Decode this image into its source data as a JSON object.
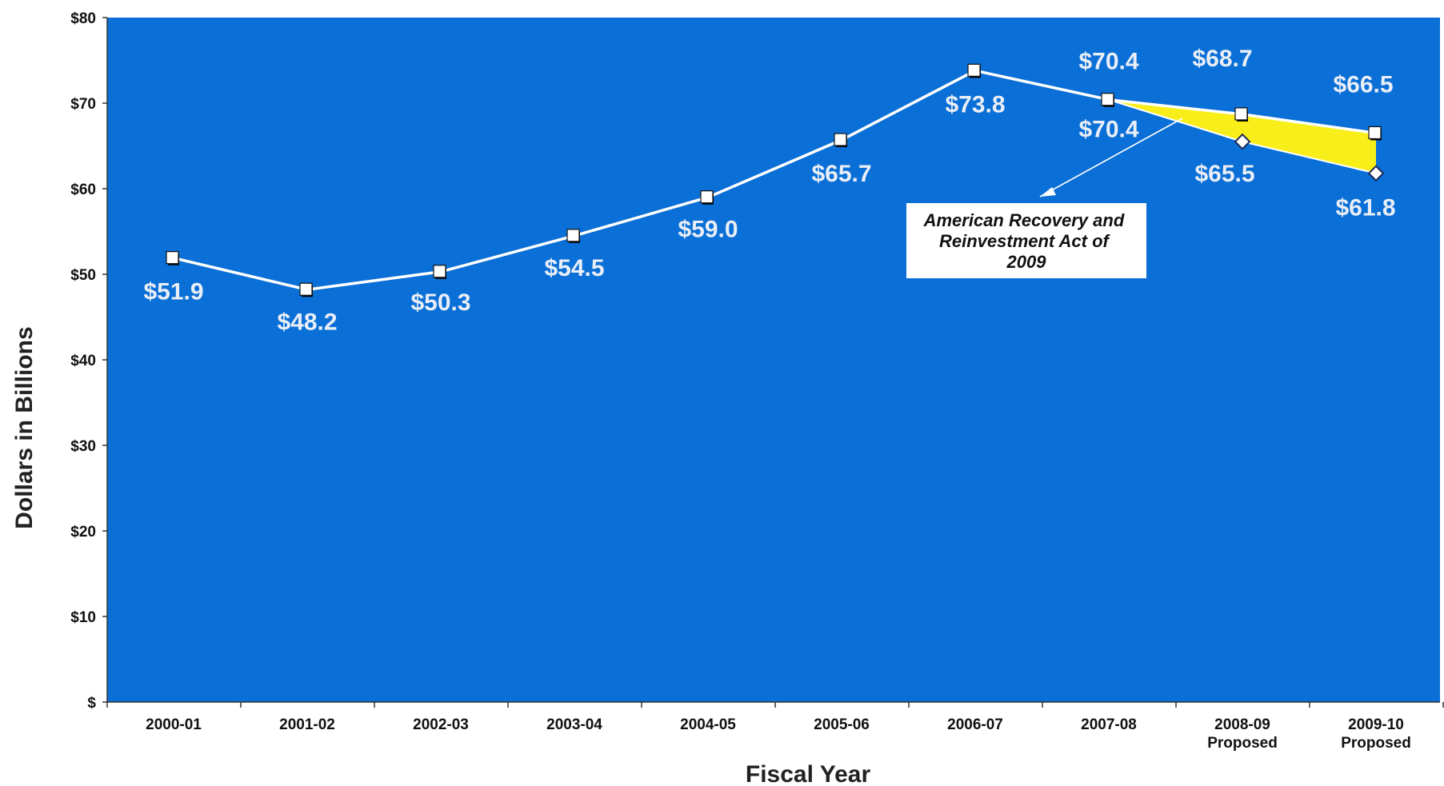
{
  "chart_data": {
    "type": "line",
    "ylabel": "Dollars in Billions",
    "xlabel": "Fiscal Year",
    "ylim": [
      0,
      80
    ],
    "yticks": [
      {
        "value": 0,
        "label": "$"
      },
      {
        "value": 10,
        "label": "$10"
      },
      {
        "value": 20,
        "label": "$20"
      },
      {
        "value": 30,
        "label": "$30"
      },
      {
        "value": 40,
        "label": "$40"
      },
      {
        "value": 50,
        "label": "$50"
      },
      {
        "value": 60,
        "label": "$60"
      },
      {
        "value": 70,
        "label": "$70"
      },
      {
        "value": 80,
        "label": "$80"
      }
    ],
    "categories": [
      [
        "2000-01"
      ],
      [
        "2001-02"
      ],
      [
        "2002-03"
      ],
      [
        "2003-04"
      ],
      [
        "2004-05"
      ],
      [
        "2005-06"
      ],
      [
        "2006-07"
      ],
      [
        "2007-08"
      ],
      [
        "2008-09",
        "Proposed"
      ],
      [
        "2009-10",
        "Proposed"
      ]
    ],
    "series": [
      {
        "values": [
          51.9,
          48.2,
          50.3,
          54.5,
          59.0,
          65.7,
          73.8,
          70.4,
          68.7,
          66.5
        ],
        "labels": [
          "$51.9",
          "$48.2",
          "$50.3",
          "$54.5",
          "$59.0",
          "$65.7",
          "$73.8",
          "$70.4",
          "$68.7",
          "$66.5"
        ]
      },
      {
        "values": [
          null,
          null,
          null,
          null,
          null,
          null,
          null,
          70.4,
          65.5,
          61.8
        ],
        "labels": [
          "",
          "",
          "",
          "",
          "",
          "",
          "",
          "$70.4",
          "$65.5",
          "$61.8"
        ]
      }
    ],
    "annotations": [
      {
        "text": [
          "American Recovery and",
          "Reinvestment Act of",
          "2009"
        ]
      }
    ],
    "colors": {
      "plot_background": "#0a6fd6",
      "line": "#ffffff",
      "fill_gap": "#f7ee1a",
      "label_text": "#e9eef7"
    },
    "grid": false
  }
}
